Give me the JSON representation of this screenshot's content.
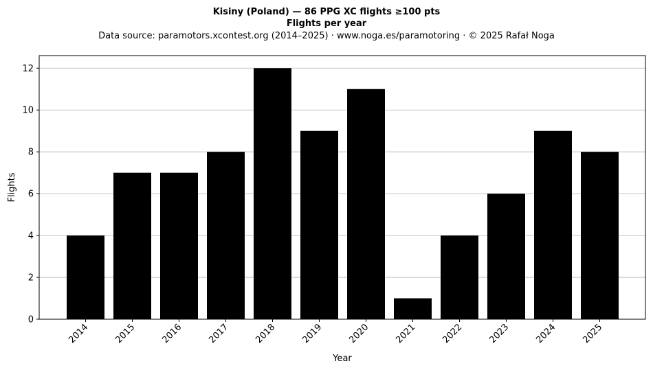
{
  "chart_data": {
    "type": "bar",
    "title": "Kisiny (Poland)  —  86 PPG XC flights ≥100 pts",
    "subtitle": "Flights per year",
    "source": "Data source: paramotors.xcontest.org (2014–2025)  ·  www.noga.es/paramotoring  ·  © 2025 Rafał Noga",
    "categories": [
      "2014",
      "2015",
      "2016",
      "2017",
      "2018",
      "2019",
      "2020",
      "2021",
      "2022",
      "2023",
      "2024",
      "2025"
    ],
    "values": [
      4,
      7,
      7,
      8,
      12,
      9,
      11,
      1,
      4,
      6,
      9,
      8
    ],
    "xlabel": "Year",
    "ylabel": "Flights",
    "ylim": [
      0,
      12.6
    ],
    "yticks": [
      0,
      2,
      4,
      6,
      8,
      10,
      12
    ],
    "grid": "y",
    "bar_color": "#000000",
    "grid_color": "#b0b0b0"
  }
}
